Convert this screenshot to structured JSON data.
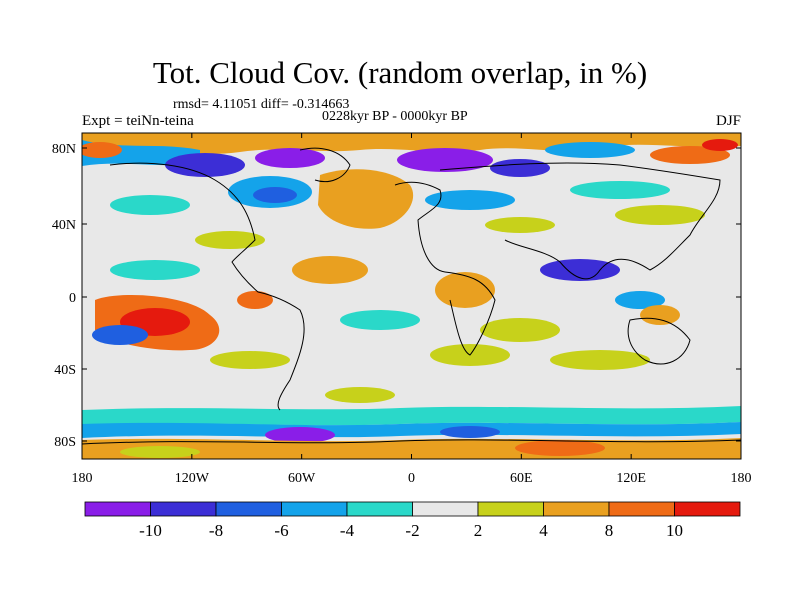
{
  "title": "Tot. Cloud Cov. (random overlap, in %)",
  "stats": "rmsd= 4.11051 diff= -0.314663",
  "period": "0228kyr BP - 0000kyr BP",
  "experiment": "Expt = teiNn-teina",
  "season": "DJF",
  "lat_ticks": [
    "80N",
    "40N",
    "0",
    "40S",
    "80S"
  ],
  "lon_ticks": [
    "180",
    "120W",
    "60W",
    "0",
    "60E",
    "120E",
    "180"
  ],
  "colorbar": {
    "labels": [
      "-10",
      "-8",
      "-6",
      "-4",
      "-2",
      "2",
      "4",
      "8",
      "10"
    ],
    "colors": [
      "#8a1ee8",
      "#3c2ed6",
      "#1f5fe0",
      "#14a3ea",
      "#2ad8c9",
      "#e8e8e8",
      "#c7d11b",
      "#e9a020",
      "#ef6b16",
      "#e51a0e"
    ]
  },
  "background_color": "#e8e8e8"
}
